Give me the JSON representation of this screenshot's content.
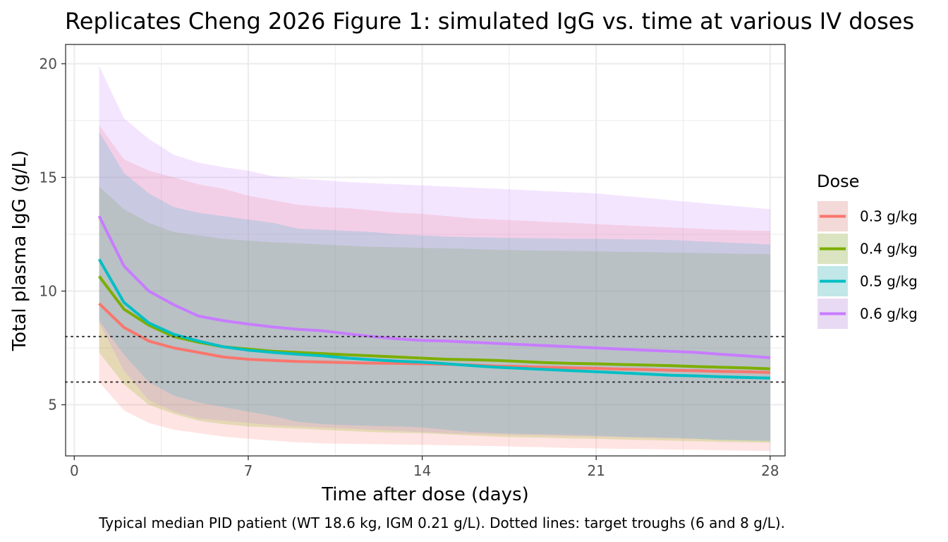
{
  "chart_data": {
    "type": "line",
    "title": "Replicates Cheng 2026 Figure 1: simulated IgG vs. time at various IV doses",
    "xlabel": "Time after dose (days)",
    "ylabel": "Total plasma IgG (g/L)",
    "caption": "Typical median PID patient (WT 18.6 kg, IGM 0.21 g/L). Dotted lines: target troughs (6 and 8 g/L).",
    "xlim": [
      -0.35,
      28.6
    ],
    "ylim": [
      2.75,
      20.85
    ],
    "x_ticks": [
      0,
      7,
      14,
      21,
      28
    ],
    "x_tick_labels": [
      "0",
      "7",
      "14",
      "21",
      "28"
    ],
    "y_ticks": [
      5,
      10,
      15,
      20
    ],
    "y_tick_labels": [
      "5",
      "10",
      "15",
      "20"
    ],
    "grid": true,
    "legend_title": "Dose",
    "legend_position": "right",
    "reference_lines": [
      6,
      8
    ],
    "x": [
      1,
      2,
      3,
      4,
      5,
      6,
      7,
      8,
      9,
      10,
      11,
      12,
      13,
      14,
      15,
      16,
      17,
      18,
      19,
      20,
      21,
      22,
      23,
      24,
      25,
      26,
      27,
      28
    ],
    "series": [
      {
        "name": "0.3 g/kg",
        "color": "#F8766D",
        "values": [
          9.45,
          8.4,
          7.8,
          7.5,
          7.3,
          7.1,
          7.0,
          6.95,
          6.9,
          6.88,
          6.85,
          6.83,
          6.82,
          6.8,
          6.78,
          6.75,
          6.7,
          6.68,
          6.65,
          6.62,
          6.6,
          6.57,
          6.55,
          6.52,
          6.5,
          6.47,
          6.45,
          6.42
        ],
        "lower": [
          6.0,
          4.75,
          4.2,
          3.9,
          3.75,
          3.6,
          3.5,
          3.42,
          3.35,
          3.3,
          3.28,
          3.27,
          3.25,
          3.24,
          3.22,
          3.2,
          3.18,
          3.15,
          3.13,
          3.1,
          3.08,
          3.06,
          3.05,
          3.03,
          3.02,
          3.0,
          2.98,
          2.97
        ],
        "upper": [
          17.3,
          15.8,
          15.3,
          15.0,
          14.7,
          14.5,
          14.2,
          14.0,
          13.8,
          13.7,
          13.65,
          13.55,
          13.45,
          13.4,
          13.3,
          13.2,
          13.15,
          13.1,
          13.05,
          13.0,
          12.95,
          12.9,
          12.85,
          12.8,
          12.75,
          12.7,
          12.67,
          12.65
        ]
      },
      {
        "name": "0.4 g/kg",
        "color": "#7CAE00",
        "values": [
          10.65,
          9.2,
          8.5,
          8.0,
          7.75,
          7.55,
          7.45,
          7.35,
          7.3,
          7.25,
          7.2,
          7.15,
          7.1,
          7.05,
          7.0,
          6.98,
          6.95,
          6.9,
          6.85,
          6.82,
          6.8,
          6.77,
          6.75,
          6.72,
          6.68,
          6.65,
          6.62,
          6.58
        ],
        "lower": [
          7.3,
          5.9,
          5.0,
          4.6,
          4.3,
          4.15,
          4.05,
          4.0,
          3.95,
          3.9,
          3.85,
          3.8,
          3.77,
          3.75,
          3.7,
          3.65,
          3.6,
          3.57,
          3.55,
          3.52,
          3.5,
          3.47,
          3.45,
          3.42,
          3.4,
          3.37,
          3.35,
          3.33
        ],
        "upper": [
          14.6,
          13.6,
          13.0,
          12.6,
          12.45,
          12.3,
          12.22,
          12.15,
          12.1,
          12.05,
          12.0,
          11.95,
          11.93,
          11.9,
          11.88,
          11.85,
          11.82,
          11.8,
          11.78,
          11.77,
          11.75,
          11.73,
          11.72,
          11.7,
          11.68,
          11.66,
          11.64,
          11.62
        ]
      },
      {
        "name": "0.5 g/kg",
        "color": "#00BFC4",
        "values": [
          11.4,
          9.5,
          8.6,
          8.1,
          7.8,
          7.55,
          7.4,
          7.3,
          7.22,
          7.15,
          7.05,
          6.98,
          6.92,
          6.87,
          6.8,
          6.72,
          6.65,
          6.6,
          6.55,
          6.5,
          6.45,
          6.4,
          6.35,
          6.3,
          6.27,
          6.23,
          6.2,
          6.17
        ],
        "lower": [
          8.7,
          7.2,
          6.0,
          5.4,
          5.1,
          4.9,
          4.7,
          4.5,
          4.25,
          4.15,
          4.1,
          4.07,
          4.05,
          4.0,
          3.9,
          3.8,
          3.75,
          3.72,
          3.7,
          3.67,
          3.64,
          3.6,
          3.57,
          3.55,
          3.5,
          3.45,
          3.42,
          3.4
        ],
        "upper": [
          17.0,
          15.2,
          14.3,
          13.7,
          13.45,
          13.3,
          13.15,
          13.0,
          12.75,
          12.7,
          12.65,
          12.6,
          12.5,
          12.45,
          12.4,
          12.37,
          12.35,
          12.33,
          12.32,
          12.3,
          12.3,
          12.28,
          12.27,
          12.25,
          12.2,
          12.15,
          12.1,
          12.05
        ]
      },
      {
        "name": "0.6 g/kg",
        "color": "#C77CFF",
        "values": [
          13.3,
          11.1,
          10.0,
          9.4,
          8.9,
          8.7,
          8.55,
          8.42,
          8.32,
          8.25,
          8.12,
          8.0,
          7.9,
          7.83,
          7.8,
          7.75,
          7.7,
          7.65,
          7.6,
          7.55,
          7.5,
          7.45,
          7.4,
          7.35,
          7.3,
          7.22,
          7.15,
          7.07
        ],
        "lower": [
          8.6,
          6.5,
          5.2,
          4.7,
          4.4,
          4.3,
          4.2,
          4.1,
          4.05,
          4.0,
          3.95,
          3.9,
          3.85,
          3.8,
          3.75,
          3.72,
          3.7,
          3.67,
          3.65,
          3.62,
          3.6,
          3.57,
          3.55,
          3.52,
          3.5,
          3.47,
          3.45,
          3.42
        ],
        "upper": [
          19.9,
          17.6,
          16.7,
          16.0,
          15.65,
          15.45,
          15.3,
          15.05,
          14.95,
          14.88,
          14.8,
          14.75,
          14.7,
          14.65,
          14.6,
          14.55,
          14.5,
          14.45,
          14.4,
          14.35,
          14.3,
          14.2,
          14.1,
          14.0,
          13.9,
          13.8,
          13.7,
          13.6
        ]
      }
    ]
  }
}
